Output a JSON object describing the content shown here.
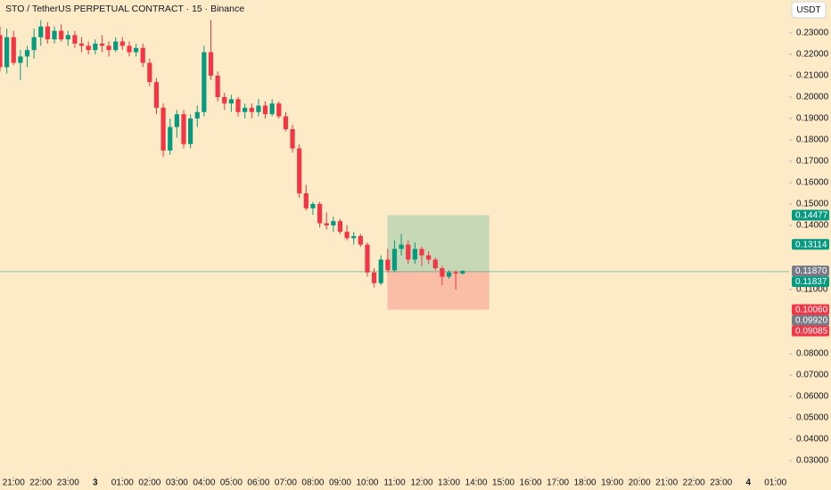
{
  "chart_data": {
    "type": "candlestick",
    "title": "STO / TetherUS PERPETUAL CONTRACT · 15 · Binance",
    "currency": "USDT",
    "up_color": "#089981",
    "down_color": "#f23645",
    "x": [
      20.5,
      20.75,
      21,
      21.25,
      21.5,
      21.75,
      22,
      22.25,
      22.5,
      22.75,
      23,
      23.25,
      23.5,
      23.75,
      24,
      24.25,
      24.5,
      24.75,
      25,
      25.25,
      25.5,
      25.75,
      26,
      26.25,
      26.5,
      26.75,
      27,
      27.25,
      27.5,
      27.75,
      28,
      28.25,
      28.5,
      28.75,
      29,
      29.25,
      29.5,
      29.75,
      30,
      30.25,
      30.5,
      30.75,
      31,
      31.25,
      31.5,
      31.75,
      32,
      32.25,
      32.5,
      32.75,
      33,
      33.25,
      33.5,
      33.75,
      34,
      34.25,
      34.5,
      34.75,
      35,
      35.25,
      35.5,
      35.75,
      36,
      36.25,
      36.5,
      36.75,
      37,
      37.25,
      37.5
    ],
    "open": [
      0.229,
      0.214,
      0.228,
      0.216,
      0.219,
      0.222,
      0.228,
      0.233,
      0.227,
      0.231,
      0.227,
      0.229,
      0.225,
      0.224,
      0.222,
      0.225,
      0.224,
      0.222,
      0.226,
      0.224,
      0.221,
      0.223,
      0.216,
      0.207,
      0.195,
      0.175,
      0.186,
      0.192,
      0.178,
      0.19,
      0.193,
      0.221,
      0.21,
      0.2,
      0.197,
      0.199,
      0.193,
      0.195,
      0.193,
      0.196,
      0.192,
      0.197,
      0.191,
      0.185,
      0.176,
      0.155,
      0.148,
      0.15,
      0.141,
      0.14,
      0.142,
      0.137,
      0.134,
      0.135,
      0.131,
      0.118,
      0.113,
      0.124,
      0.119,
      0.129,
      0.131,
      0.124,
      0.129,
      0.126,
      0.124,
      0.12,
      0.116,
      0.118,
      0.1175
    ],
    "high": [
      0.233,
      0.232,
      0.231,
      0.222,
      0.224,
      0.232,
      0.236,
      0.235,
      0.233,
      0.234,
      0.231,
      0.231,
      0.228,
      0.226,
      0.227,
      0.229,
      0.226,
      0.228,
      0.228,
      0.226,
      0.225,
      0.225,
      0.218,
      0.209,
      0.197,
      0.19,
      0.194,
      0.194,
      0.192,
      0.196,
      0.224,
      0.236,
      0.212,
      0.202,
      0.201,
      0.2,
      0.197,
      0.197,
      0.199,
      0.198,
      0.199,
      0.198,
      0.193,
      0.187,
      0.178,
      0.159,
      0.151,
      0.151,
      0.146,
      0.144,
      0.143,
      0.14,
      0.137,
      0.136,
      0.132,
      0.12,
      0.126,
      0.129,
      0.133,
      0.136,
      0.133,
      0.132,
      0.13,
      0.128,
      0.125,
      0.121,
      0.119,
      0.119,
      0.119
    ],
    "low": [
      0.212,
      0.211,
      0.215,
      0.208,
      0.214,
      0.218,
      0.224,
      0.225,
      0.225,
      0.226,
      0.224,
      0.223,
      0.221,
      0.22,
      0.22,
      0.221,
      0.219,
      0.221,
      0.222,
      0.219,
      0.219,
      0.214,
      0.205,
      0.192,
      0.172,
      0.173,
      0.181,
      0.176,
      0.176,
      0.186,
      0.191,
      0.208,
      0.198,
      0.194,
      0.193,
      0.191,
      0.19,
      0.19,
      0.191,
      0.19,
      0.191,
      0.19,
      0.184,
      0.174,
      0.153,
      0.147,
      0.145,
      0.139,
      0.138,
      0.137,
      0.136,
      0.133,
      0.131,
      0.13,
      0.116,
      0.111,
      0.112,
      0.118,
      0.118,
      0.126,
      0.122,
      0.122,
      0.121,
      0.122,
      0.119,
      0.112,
      0.115,
      0.11,
      0.117
    ],
    "close": [
      0.214,
      0.228,
      0.216,
      0.219,
      0.222,
      0.228,
      0.233,
      0.227,
      0.231,
      0.227,
      0.229,
      0.225,
      0.224,
      0.222,
      0.225,
      0.224,
      0.222,
      0.226,
      0.224,
      0.221,
      0.223,
      0.216,
      0.207,
      0.195,
      0.175,
      0.186,
      0.192,
      0.178,
      0.19,
      0.193,
      0.221,
      0.21,
      0.2,
      0.197,
      0.199,
      0.193,
      0.195,
      0.193,
      0.196,
      0.192,
      0.197,
      0.191,
      0.185,
      0.176,
      0.155,
      0.148,
      0.15,
      0.141,
      0.14,
      0.142,
      0.137,
      0.134,
      0.135,
      0.131,
      0.118,
      0.113,
      0.124,
      0.119,
      0.129,
      0.131,
      0.124,
      0.129,
      0.126,
      0.124,
      0.12,
      0.116,
      0.118,
      0.1175,
      0.1187
    ],
    "xlim": [
      20.5,
      49.5
    ],
    "ylim": [
      0.0225,
      0.2454
    ],
    "xticks": [
      {
        "value": 21,
        "label": "21:00"
      },
      {
        "value": 22,
        "label": "22:00"
      },
      {
        "value": 23,
        "label": "23:00"
      },
      {
        "value": 24,
        "label": "3"
      },
      {
        "value": 25,
        "label": "01:00"
      },
      {
        "value": 26,
        "label": "02:00"
      },
      {
        "value": 27,
        "label": "03:00"
      },
      {
        "value": 28,
        "label": "04:00"
      },
      {
        "value": 29,
        "label": "05:00"
      },
      {
        "value": 30,
        "label": "06:00"
      },
      {
        "value": 31,
        "label": "07:00"
      },
      {
        "value": 32,
        "label": "08:00"
      },
      {
        "value": 33,
        "label": "09:00"
      },
      {
        "value": 34,
        "label": "10:00"
      },
      {
        "value": 35,
        "label": "11:00"
      },
      {
        "value": 36,
        "label": "12:00"
      },
      {
        "value": 37,
        "label": "13:00"
      },
      {
        "value": 38,
        "label": "14:00"
      },
      {
        "value": 39,
        "label": "15:00"
      },
      {
        "value": 40,
        "label": "16:00"
      },
      {
        "value": 41,
        "label": "17:00"
      },
      {
        "value": 42,
        "label": "18:00"
      },
      {
        "value": 43,
        "label": "19:00"
      },
      {
        "value": 44,
        "label": "20:00"
      },
      {
        "value": 45,
        "label": "21:00"
      },
      {
        "value": 46,
        "label": "22:00"
      },
      {
        "value": 47,
        "label": "23:00"
      },
      {
        "value": 48,
        "label": "4"
      },
      {
        "value": 49,
        "label": "01:00"
      }
    ],
    "yticks": [
      {
        "value": 0.23,
        "label": "0.23000"
      },
      {
        "value": 0.22,
        "label": "0.22000"
      },
      {
        "value": 0.21,
        "label": "0.21000"
      },
      {
        "value": 0.2,
        "label": "0.20000"
      },
      {
        "value": 0.19,
        "label": "0.19000"
      },
      {
        "value": 0.18,
        "label": "0.18000"
      },
      {
        "value": 0.17,
        "label": "0.17000"
      },
      {
        "value": 0.16,
        "label": "0.16000"
      },
      {
        "value": 0.15,
        "label": "0.15000"
      },
      {
        "value": 0.14,
        "label": "0.14000"
      },
      {
        "value": 0.11,
        "label": "0.11000"
      },
      {
        "value": 0.08,
        "label": "0.08000"
      },
      {
        "value": 0.07,
        "label": "0.07000"
      },
      {
        "value": 0.06,
        "label": "0.06000"
      },
      {
        "value": 0.05,
        "label": "0.05000"
      },
      {
        "value": 0.04,
        "label": "0.04000"
      },
      {
        "value": 0.03,
        "label": "0.03000"
      }
    ],
    "position": {
      "start": 34.74,
      "end": 38.48,
      "target": 0.14477,
      "entry": 0.1187,
      "stop": 0.1006
    },
    "current_price": 0.11837,
    "price_labels": [
      {
        "value": 0.14477,
        "label": "0.14477",
        "color": "#089981"
      },
      {
        "value": 0.13114,
        "label": "0.13114",
        "color": "#089981"
      },
      {
        "value": 0.1187,
        "label": "0.11870",
        "color": "#787b86"
      },
      {
        "value": 0.11837,
        "label": "0.11837",
        "color": "#089981"
      },
      {
        "value": 0.1006,
        "label": "0.10060",
        "color": "#f23645"
      },
      {
        "value": 0.0992,
        "label": "0.09920",
        "color": "#787b86"
      },
      {
        "value": 0.09085,
        "label": "0.09085",
        "color": "#f23645"
      }
    ]
  }
}
